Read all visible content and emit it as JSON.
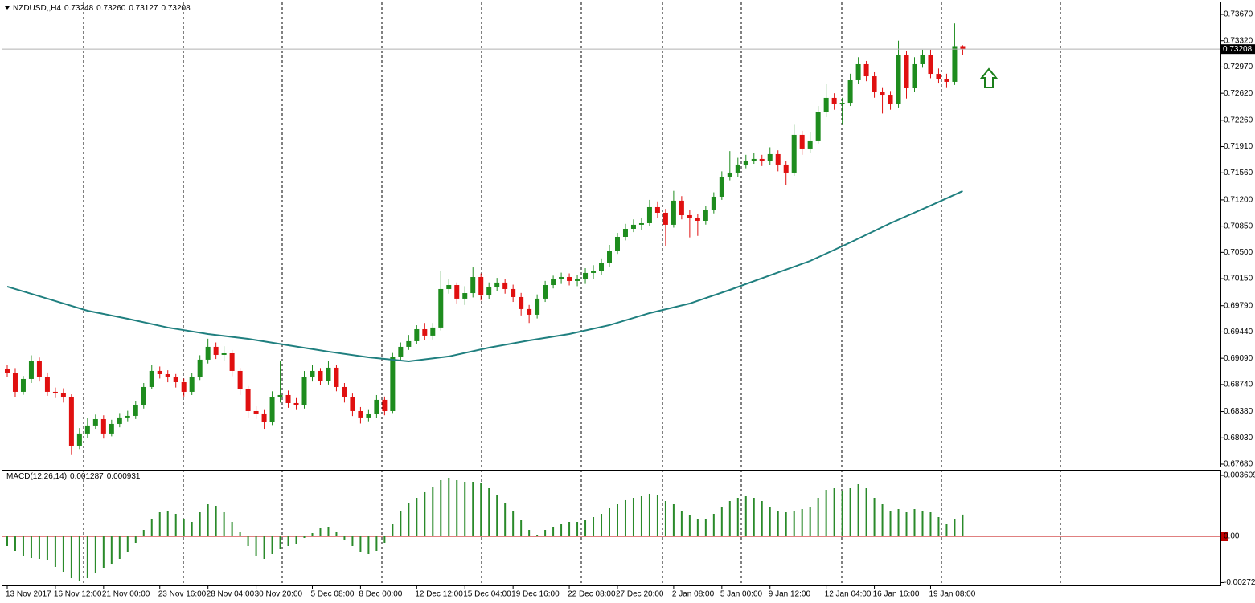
{
  "chart_data": [
    {
      "type": "candlestick",
      "title": "NZDUSD,,H4",
      "title_values": [
        0.73248,
        {
          "value": 0.7326,
          "label": "0.73260"
        },
        0.73127,
        0.73208
      ],
      "up_color": "#1e8c1e",
      "down_color": "#e01010",
      "ohlc": [
        [
          0.6895,
          0.69,
          0.68839,
          0.68889
        ],
        [
          0.68889,
          0.68959,
          0.68573,
          0.68643
        ],
        [
          0.68643,
          0.68854,
          0.68603,
          0.68814
        ],
        [
          0.68814,
          0.69129,
          0.6876,
          0.69049
        ],
        [
          0.69049,
          0.691,
          0.6878,
          0.68835
        ],
        [
          0.68835,
          0.689,
          0.6859,
          0.68643
        ],
        [
          0.68643,
          0.687,
          0.6856,
          0.68622
        ],
        [
          0.68622,
          0.6869,
          0.685,
          0.68568
        ],
        [
          0.68568,
          0.6861,
          0.678,
          0.67926
        ],
        [
          0.67926,
          0.6816,
          0.6788,
          0.68087
        ],
        [
          0.68087,
          0.683,
          0.6803,
          0.68194
        ],
        [
          0.68194,
          0.6834,
          0.6815,
          0.68279
        ],
        [
          0.68279,
          0.6833,
          0.6802,
          0.68087
        ],
        [
          0.68087,
          0.6827,
          0.6805,
          0.68215
        ],
        [
          0.68215,
          0.6836,
          0.6817,
          0.68301
        ],
        [
          0.68301,
          0.6839,
          0.6825,
          0.68322
        ],
        [
          0.68322,
          0.6852,
          0.6828,
          0.68461
        ],
        [
          0.68461,
          0.6876,
          0.6842,
          0.68707
        ],
        [
          0.68707,
          0.69,
          0.6868,
          0.68921
        ],
        [
          0.68921,
          0.6898,
          0.6882,
          0.68878
        ],
        [
          0.68878,
          0.6893,
          0.6877,
          0.68835
        ],
        [
          0.68835,
          0.6888,
          0.687,
          0.68771
        ],
        [
          0.68771,
          0.6882,
          0.6858,
          0.68643
        ],
        [
          0.68643,
          0.6889,
          0.686,
          0.68835
        ],
        [
          0.68835,
          0.6913,
          0.688,
          0.69071
        ],
        [
          0.69071,
          0.6935,
          0.6902,
          0.69242
        ],
        [
          0.69242,
          0.693,
          0.6908,
          0.69135
        ],
        [
          0.69135,
          0.6925,
          0.6906,
          0.69156
        ],
        [
          0.69156,
          0.692,
          0.6885,
          0.68921
        ],
        [
          0.68921,
          0.6896,
          0.686,
          0.68675
        ],
        [
          0.68675,
          0.6872,
          0.683,
          0.68386
        ],
        [
          0.68386,
          0.6845,
          0.6828,
          0.68354
        ],
        [
          0.68354,
          0.684,
          0.6815,
          0.68236
        ],
        [
          0.68236,
          0.6865,
          0.682,
          0.68568
        ],
        [
          0.68568,
          0.6905,
          0.685,
          0.686
        ],
        [
          0.686,
          0.6866,
          0.6843,
          0.68493
        ],
        [
          0.68493,
          0.6856,
          0.684,
          0.68461
        ],
        [
          0.68461,
          0.6892,
          0.6842,
          0.68835
        ],
        [
          0.68835,
          0.69,
          0.6878,
          0.68921
        ],
        [
          0.68921,
          0.6896,
          0.6873,
          0.68782
        ],
        [
          0.68782,
          0.6905,
          0.6874,
          0.68964
        ],
        [
          0.68964,
          0.69,
          0.6865,
          0.68707
        ],
        [
          0.68707,
          0.6876,
          0.685,
          0.68568
        ],
        [
          0.68568,
          0.6862,
          0.6832,
          0.68386
        ],
        [
          0.68386,
          0.6844,
          0.6822,
          0.68301
        ],
        [
          0.68301,
          0.684,
          0.6825,
          0.68343
        ],
        [
          0.68343,
          0.686,
          0.683,
          0.68536
        ],
        [
          0.68536,
          0.6858,
          0.6833,
          0.68386
        ],
        [
          0.68386,
          0.6916,
          0.6836,
          0.69103
        ],
        [
          0.69103,
          0.693,
          0.6905,
          0.69242
        ],
        [
          0.69242,
          0.694,
          0.692,
          0.69317
        ],
        [
          0.69317,
          0.6953,
          0.6928,
          0.69477
        ],
        [
          0.69477,
          0.6956,
          0.6933,
          0.69392
        ],
        [
          0.69392,
          0.6956,
          0.6934,
          0.69499
        ],
        [
          0.69499,
          0.7025,
          0.6946,
          0.70012
        ],
        [
          0.70012,
          0.7015,
          0.6995,
          0.70065
        ],
        [
          0.70065,
          0.701,
          0.6982,
          0.69884
        ],
        [
          0.69884,
          0.7005,
          0.698,
          0.69958
        ],
        [
          0.69958,
          0.703,
          0.699,
          0.70172
        ],
        [
          0.70172,
          0.7022,
          0.6986,
          0.69926
        ],
        [
          0.69926,
          0.701,
          0.6988,
          0.70033
        ],
        [
          0.70033,
          0.7016,
          0.6998,
          0.70098
        ],
        [
          0.70098,
          0.7015,
          0.6995,
          0.70012
        ],
        [
          0.70012,
          0.7007,
          0.6984,
          0.69905
        ],
        [
          0.69905,
          0.6996,
          0.6966,
          0.69745
        ],
        [
          0.69745,
          0.698,
          0.6956,
          0.6967
        ],
        [
          0.6967,
          0.6994,
          0.6962,
          0.69884
        ],
        [
          0.69884,
          0.7012,
          0.6984,
          0.70065
        ],
        [
          0.70065,
          0.7019,
          0.7002,
          0.7014
        ],
        [
          0.7014,
          0.7023,
          0.7008,
          0.70172
        ],
        [
          0.70172,
          0.7022,
          0.7006,
          0.70119
        ],
        [
          0.70119,
          0.702,
          0.7005,
          0.7014
        ],
        [
          0.7014,
          0.7029,
          0.7008,
          0.70226
        ],
        [
          0.70226,
          0.7033,
          0.7015,
          0.70247
        ],
        [
          0.70247,
          0.7042,
          0.702,
          0.70354
        ],
        [
          0.70354,
          0.706,
          0.7031,
          0.70525
        ],
        [
          0.70525,
          0.7076,
          0.7048,
          0.70707
        ],
        [
          0.70707,
          0.7088,
          0.7066,
          0.70814
        ],
        [
          0.70814,
          0.7094,
          0.7077,
          0.70868
        ],
        [
          0.70868,
          0.7096,
          0.708,
          0.70889
        ],
        [
          0.70889,
          0.712,
          0.7085,
          0.71103
        ],
        [
          0.71103,
          0.7118,
          0.7096,
          0.71028
        ],
        [
          0.71028,
          0.7108,
          0.7058,
          0.70868
        ],
        [
          0.70868,
          0.7132,
          0.7083,
          0.71189
        ],
        [
          0.71189,
          0.7125,
          0.7094,
          0.70996
        ],
        [
          0.70996,
          0.7106,
          0.707,
          0.70953
        ],
        [
          0.70953,
          0.7101,
          0.7072,
          0.70921
        ],
        [
          0.70921,
          0.7112,
          0.7087,
          0.7106
        ],
        [
          0.7106,
          0.713,
          0.7102,
          0.71242
        ],
        [
          0.71242,
          0.7158,
          0.712,
          0.71509
        ],
        [
          0.71509,
          0.7185,
          0.7146,
          0.71563
        ],
        [
          0.71563,
          0.7176,
          0.715,
          0.7167
        ],
        [
          0.7167,
          0.718,
          0.7162,
          0.71723
        ],
        [
          0.71723,
          0.7182,
          0.7168,
          0.71745
        ],
        [
          0.71745,
          0.718,
          0.7165,
          0.71723
        ],
        [
          0.71723,
          0.719,
          0.7166,
          0.71809
        ],
        [
          0.71809,
          0.7186,
          0.7158,
          0.7167
        ],
        [
          0.7167,
          0.7172,
          0.714,
          0.71563
        ],
        [
          0.71563,
          0.722,
          0.7152,
          0.72066
        ],
        [
          0.72066,
          0.7212,
          0.718,
          0.71884
        ],
        [
          0.71884,
          0.721,
          0.7183,
          0.71991
        ],
        [
          0.71991,
          0.7245,
          0.7195,
          0.72365
        ],
        [
          0.72365,
          0.7275,
          0.723,
          0.72558
        ],
        [
          0.72558,
          0.7262,
          0.724,
          0.72472
        ],
        [
          0.72472,
          0.7256,
          0.722,
          0.72493
        ],
        [
          0.72493,
          0.7288,
          0.7245,
          0.72793
        ],
        [
          0.72793,
          0.731,
          0.7275,
          0.73007
        ],
        [
          0.73007,
          0.7305,
          0.7278,
          0.72846
        ],
        [
          0.72846,
          0.729,
          0.7256,
          0.72633
        ],
        [
          0.72633,
          0.727,
          0.7235,
          0.726
        ],
        [
          0.726,
          0.7265,
          0.724,
          0.72472
        ],
        [
          0.72472,
          0.7332,
          0.7243,
          0.73135
        ],
        [
          0.73135,
          0.7318,
          0.7255,
          0.72686
        ],
        [
          0.72686,
          0.731,
          0.7264,
          0.73007
        ],
        [
          0.73007,
          0.732,
          0.7296,
          0.73135
        ],
        [
          0.73135,
          0.732,
          0.7282,
          0.72878
        ],
        [
          0.72878,
          0.7295,
          0.7276,
          0.72814
        ],
        [
          0.72814,
          0.7288,
          0.727,
          0.72772
        ],
        [
          0.72772,
          0.7355,
          0.7273,
          0.73248
        ],
        [
          0.73248,
          0.7326,
          0.73127,
          0.73208
        ]
      ],
      "lines": [
        {
          "color": "#1f7f7f",
          "x": [
            0,
            5,
            10,
            15,
            20,
            25,
            30,
            35,
            40,
            45,
            50,
            55,
            60,
            65,
            70,
            75,
            80,
            85,
            90,
            95,
            100,
            105,
            110,
            115,
            119
          ],
          "values": [
            0.70044,
            0.69884,
            0.69723,
            0.69616,
            0.69499,
            0.69413,
            0.69349,
            0.69263,
            0.69178,
            0.69103,
            0.69049,
            0.69114,
            0.69231,
            0.69327,
            0.69413,
            0.69531,
            0.69691,
            0.69819,
            0.70001,
            0.70194,
            0.70386,
            0.70632,
            0.70889,
            0.71124,
            0.71317
          ]
        }
      ],
      "current_price": 0.73208,
      "xlim": [
        -0.7,
        151.1
      ],
      "ylim": [
        0.67637,
        0.73809
      ],
      "yticks": [
        {
          "value": 0.7367,
          "label": "0.73670"
        },
        {
          "value": 0.7332,
          "label": "0.73320"
        },
        {
          "value": 0.7297,
          "label": "0.72970"
        },
        {
          "value": 0.7262,
          "label": "0.72620"
        },
        {
          "value": 0.7226,
          "label": "0.72260"
        },
        {
          "value": 0.7191,
          "label": "0.71910"
        },
        {
          "value": 0.7156,
          "label": "0.71560"
        },
        {
          "value": 0.712,
          "label": "0.71200"
        },
        {
          "value": 0.7085,
          "label": "0.70850"
        },
        {
          "value": 0.705,
          "label": "0.70500"
        },
        {
          "value": 0.7015,
          "label": "0.70150"
        },
        {
          "value": 0.6979,
          "label": "0.69790"
        },
        {
          "value": 0.6944,
          "label": "0.69440"
        },
        {
          "value": 0.6909,
          "label": "0.69090"
        },
        {
          "value": 0.6874,
          "label": "0.68740"
        },
        {
          "value": 0.6838,
          "label": "0.68380"
        },
        {
          "value": 0.6803,
          "label": "0.68030"
        },
        {
          "value": 0.6768,
          "label": "0.67680"
        }
      ]
    },
    {
      "type": "bar",
      "title": "MACD(12,26,14)",
      "title_values": [
        0.001287,
        0.000931
      ],
      "color": "#2a8a2a",
      "zero_line_color": "#c00000",
      "values": [
        -0.00057,
        -0.000855,
        -0.00114,
        -0.001283,
        -0.00133,
        -0.001425,
        -0.001805,
        -0.002138,
        -0.00247,
        -0.002613,
        -0.00247,
        -0.002185,
        -0.0019,
        -0.001663,
        -0.00133,
        -0.00095,
        -0.00038,
        0.00038,
        0.001045,
        0.001425,
        0.00152,
        0.00133,
        0.001045,
        0.000855,
        0.001425,
        0.0019,
        0.001805,
        0.001425,
        0.000855,
        0.000238,
        -0.00057,
        -0.00114,
        -0.00133,
        -0.001045,
        -0.00076,
        -0.00057,
        -0.000475,
        -9.5e-05,
        0.00019,
        0.000475,
        0.00057,
        0.000285,
        -0.00019,
        -0.00057,
        -0.00095,
        -0.001045,
        -0.000855,
        -0.00038,
        0.000713,
        0.00152,
        0.001995,
        0.00228,
        0.002613,
        0.002945,
        0.003325,
        0.003468,
        0.003325,
        0.00323,
        0.00323,
        0.003135,
        0.00285,
        0.00247,
        0.001995,
        0.00152,
        0.00095,
        0.00038,
        9.5e-05,
        0.00038,
        0.00057,
        0.00076,
        0.000855,
        0.000855,
        0.00095,
        0.00114,
        0.00133,
        0.001663,
        0.0019,
        0.002138,
        0.00228,
        0.002375,
        0.002518,
        0.00247,
        0.00209,
        0.0019,
        0.00152,
        0.001235,
        0.001045,
        0.001045,
        0.00133,
        0.00171,
        0.00209,
        0.00228,
        0.002375,
        0.00228,
        0.00209,
        0.00171,
        0.00152,
        0.001425,
        0.00152,
        0.001615,
        0.00171,
        0.00228,
        0.002755,
        0.00285,
        0.00266,
        0.00285,
        0.003088,
        0.00285,
        0.00228,
        0.0019,
        0.00152,
        0.001615,
        0.001425,
        0.001615,
        0.00152,
        0.001425,
        0.00114,
        0.00076,
        0.001045,
        0.001287
      ],
      "xlim": [
        -0.7,
        151.1
      ],
      "ylim": [
        -0.002944,
        0.003894
      ],
      "yticks": [
        0.003609,
        {
          "value": 0,
          "label": "0.00"
        },
        -0.002728
      ],
      "xticks": [
        {
          "value": 0,
          "label": "13 Nov 2017"
        },
        {
          "value": 6,
          "label": "16 Nov 12:00"
        },
        {
          "value": 12,
          "label": "21 Nov 00:00"
        },
        {
          "value": 19,
          "label": "23 Nov 16:00"
        },
        {
          "value": 25,
          "label": "28 Nov 04:00"
        },
        {
          "value": 31,
          "label": "30 Nov 20:00"
        },
        {
          "value": 38,
          "label": "5 Dec 08:00"
        },
        {
          "value": 44,
          "label": "8 Dec 00:00"
        },
        {
          "value": 51,
          "label": "12 Dec 12:00"
        },
        {
          "value": 57,
          "label": "15 Dec 04:00"
        },
        {
          "value": 63,
          "label": "19 Dec 16:00"
        },
        {
          "value": 70,
          "label": "22 Dec 08:00"
        },
        {
          "value": 76,
          "label": "27 Dec 20:00"
        },
        {
          "value": 83,
          "label": "2 Jan 08:00"
        },
        {
          "value": 89,
          "label": "5 Jan 00:00"
        },
        {
          "value": 95,
          "label": "9 Jan 12:00"
        },
        {
          "value": 102,
          "label": "12 Jan 04:00"
        },
        {
          "value": 108,
          "label": "16 Jan 16:00"
        },
        {
          "value": 115,
          "label": "19 Jan 08:00"
        }
      ]
    }
  ]
}
